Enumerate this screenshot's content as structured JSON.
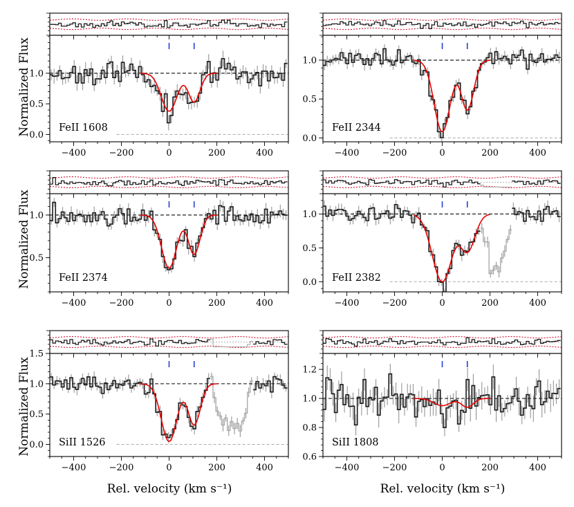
{
  "chart_data": {
    "type": "line",
    "description_text": {
      "ylabel": "Normalized Flux",
      "xlabel": "Rel. velocity  (km s⁻¹)"
    },
    "xlim": [
      -500,
      500
    ],
    "x_ticks": [
      -400,
      -200,
      0,
      200,
      400
    ],
    "x_tick_labels": [
      "−400",
      "−200",
      "0",
      "200",
      "400"
    ],
    "component_velocities": [
      0,
      105
    ],
    "colors": {
      "data": "#1a1a1a",
      "errorbar": "#8a8a8a",
      "model": "#e60000",
      "residual_band": "#d01030",
      "tick_marker": "#1f3fd6",
      "continuum": "#222222",
      "zero_line": "#aaaaaa",
      "masked": "#aaaaaa"
    },
    "panels": [
      {
        "ion": "FeII 1608",
        "ylim": [
          -0.12,
          1.62
        ],
        "y_ticks": [
          0.0,
          0.5,
          1.0
        ],
        "y_tick_labels": [
          "0.0",
          "0.5",
          "1.0"
        ],
        "components": [
          {
            "v": 0,
            "depth": 0.62,
            "sigma": 33
          },
          {
            "v": 105,
            "depth": 0.47,
            "sigma": 25
          }
        ],
        "noise": 0.1,
        "masked_range": null,
        "seed": 11
      },
      {
        "ion": "FeII 2344",
        "ylim": [
          -0.05,
          1.32
        ],
        "y_ticks": [
          0.0,
          0.5,
          1.0
        ],
        "y_tick_labels": [
          "0.0",
          "0.5",
          "1.0"
        ],
        "components": [
          {
            "v": 0,
            "depth": 0.92,
            "sigma": 34
          },
          {
            "v": 105,
            "depth": 0.64,
            "sigma": 27
          }
        ],
        "noise": 0.06,
        "masked_range": null,
        "seed": 23
      },
      {
        "ion": "FeII 2374",
        "ylim": [
          0.1,
          1.25
        ],
        "y_ticks": [
          0.5,
          1.0
        ],
        "y_tick_labels": [
          "0.5",
          "1.0"
        ],
        "components": [
          {
            "v": 0,
            "depth": 0.62,
            "sigma": 32
          },
          {
            "v": 105,
            "depth": 0.46,
            "sigma": 25
          }
        ],
        "noise": 0.06,
        "masked_range": null,
        "seed": 37
      },
      {
        "ion": "FeII 2382",
        "ylim": [
          -0.15,
          1.3
        ],
        "y_ticks": [
          0.0,
          0.5,
          1.0
        ],
        "y_tick_labels": [
          "0.0",
          "0.5",
          "1.0"
        ],
        "components": [
          {
            "v": 0,
            "depth": 1.0,
            "sigma": 42
          },
          {
            "v": 105,
            "depth": 0.55,
            "sigma": 32
          }
        ],
        "noise": 0.07,
        "masked_range": [
          160,
          290
        ],
        "seed": 41
      },
      {
        "ion": "SiII 1526",
        "ylim": [
          -0.2,
          1.5
        ],
        "y_ticks": [
          0.0,
          0.5,
          1.0,
          1.5
        ],
        "y_tick_labels": [
          "0.0",
          "0.5",
          "1.0",
          "1.5"
        ],
        "components": [
          {
            "v": 0,
            "depth": 0.95,
            "sigma": 33
          },
          {
            "v": 105,
            "depth": 0.68,
            "sigma": 26
          }
        ],
        "noise": 0.08,
        "masked_range": [
          175,
          350
        ],
        "seed": 53
      },
      {
        "ion": "SiII 1808",
        "ylim": [
          0.6,
          1.31
        ],
        "y_ticks": [
          0.6,
          0.8,
          1.0,
          1.2
        ],
        "y_tick_labels": [
          "0.6",
          "0.8",
          "1.0",
          "1.2"
        ],
        "components": [
          {
            "v": 0,
            "depth": 0.05,
            "sigma": 35
          },
          {
            "v": 105,
            "depth": 0.06,
            "sigma": 25
          }
        ],
        "noise": 0.075,
        "masked_range": null,
        "seed": 67
      }
    ]
  }
}
